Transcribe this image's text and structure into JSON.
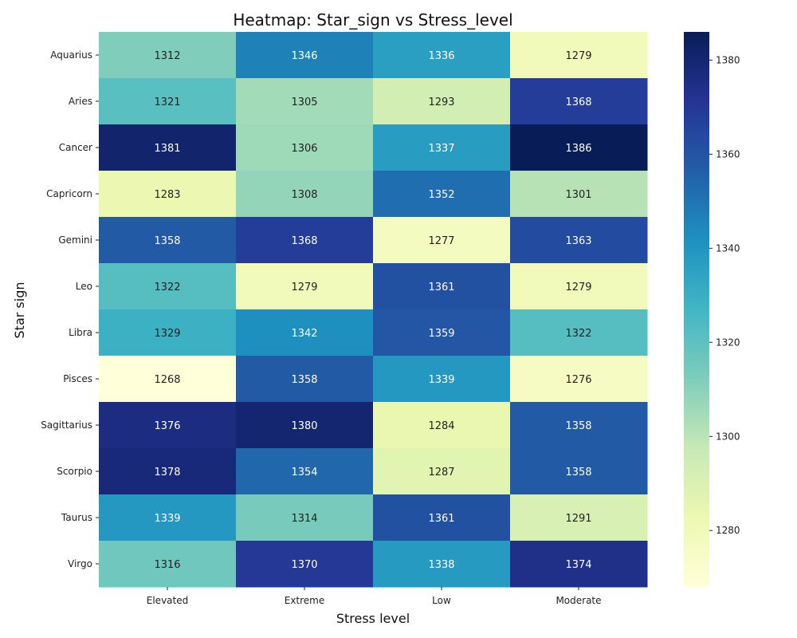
{
  "chart_data": {
    "type": "heatmap",
    "title": "Heatmap: Star_sign vs Stress_level",
    "xlabel": "Stress level",
    "ylabel": "Star sign",
    "x_categories": [
      "Elevated",
      "Extreme",
      "Low",
      "Moderate"
    ],
    "y_categories": [
      "Aquarius",
      "Aries",
      "Cancer",
      "Capricorn",
      "Gemini",
      "Leo",
      "Libra",
      "Pisces",
      "Sagittarius",
      "Scorpio",
      "Taurus",
      "Virgo"
    ],
    "values": [
      [
        1312,
        1346,
        1336,
        1279
      ],
      [
        1321,
        1305,
        1293,
        1368
      ],
      [
        1381,
        1306,
        1337,
        1386
      ],
      [
        1283,
        1308,
        1352,
        1301
      ],
      [
        1358,
        1368,
        1277,
        1363
      ],
      [
        1322,
        1279,
        1361,
        1279
      ],
      [
        1329,
        1342,
        1359,
        1322
      ],
      [
        1268,
        1358,
        1339,
        1276
      ],
      [
        1376,
        1380,
        1284,
        1358
      ],
      [
        1378,
        1354,
        1287,
        1358
      ],
      [
        1339,
        1314,
        1361,
        1291
      ],
      [
        1316,
        1370,
        1338,
        1374
      ]
    ],
    "color_range": [
      1268,
      1386
    ],
    "colorbar_ticks": [
      1280,
      1300,
      1320,
      1340,
      1360,
      1380
    ],
    "colormap": "YlGnBu"
  }
}
